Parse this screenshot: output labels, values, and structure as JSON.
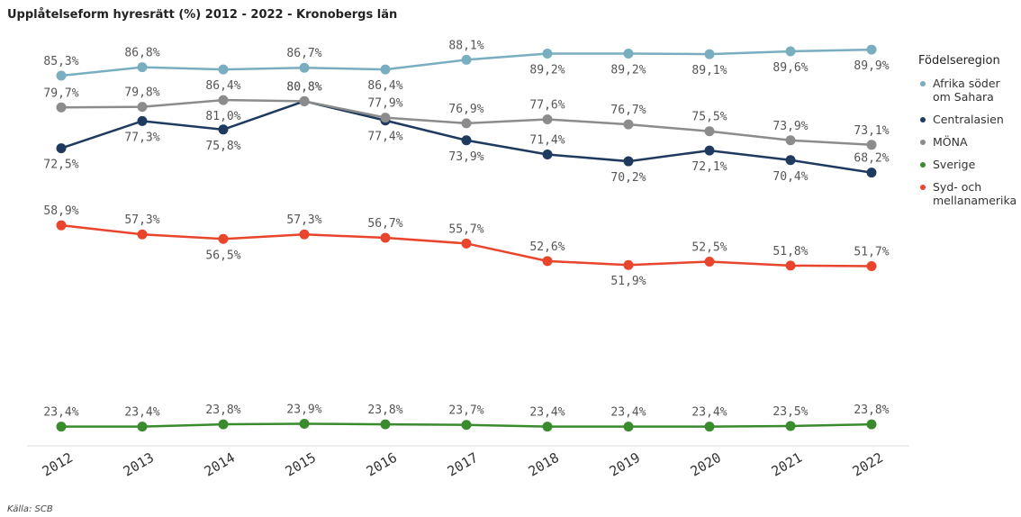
{
  "chart_data": {
    "type": "line",
    "title": "Upplåtelseform hyresrätt (%) 2012 - 2022 - Kronobergs län",
    "source": "Källa: SCB",
    "legend_title": "Födelseregion",
    "legend": "right",
    "categories": [
      "2012",
      "2013",
      "2014",
      "2015",
      "2016",
      "2017",
      "2018",
      "2019",
      "2020",
      "2021",
      "2022"
    ],
    "ylim": [
      20,
      91.5
    ],
    "series": [
      {
        "name": "Afrika söder om Sahara",
        "color": "#78aec0",
        "values": [
          85.3,
          86.8,
          86.4,
          86.7,
          86.4,
          88.1,
          89.2,
          89.2,
          89.1,
          89.6,
          89.9
        ],
        "value_labels": [
          "85,3%",
          "86,8%",
          "86,4%",
          "86,7%",
          "86,4%",
          "88,1%",
          "89,2%",
          "89,2%",
          "89,1%",
          "89,6%",
          "89,9%"
        ]
      },
      {
        "name": "Centralasien",
        "color": "#1f3a5f",
        "values": [
          72.5,
          77.3,
          75.8,
          80.8,
          77.4,
          73.9,
          71.4,
          70.2,
          72.1,
          70.4,
          68.2
        ],
        "value_labels": [
          "72,5%",
          "77,3%",
          "75,8%",
          "80,8%",
          "77,4%",
          "73,9%",
          "71,4%",
          "70,2%",
          "72,1%",
          "70,4%",
          "68,2%"
        ]
      },
      {
        "name": "MÖNA",
        "color": "#8c8c8c",
        "values": [
          79.7,
          79.8,
          81.0,
          80.8,
          77.9,
          76.9,
          77.6,
          76.7,
          75.5,
          73.9,
          73.1
        ],
        "value_labels": [
          "79,7%",
          "79,8%",
          "81,0%",
          "80,8%",
          "77,9%",
          "76,9%",
          "77,6%",
          "76,7%",
          "75,5%",
          "73,9%",
          "73,1%"
        ]
      },
      {
        "name": "Sverige",
        "color": "#3a8a2e",
        "values": [
          23.4,
          23.4,
          23.8,
          23.9,
          23.8,
          23.7,
          23.4,
          23.4,
          23.4,
          23.5,
          23.8
        ],
        "value_labels": [
          "23,4%",
          "23,4%",
          "23,8%",
          "23,9%",
          "23,8%",
          "23,7%",
          "23,4%",
          "23,4%",
          "23,4%",
          "23,5%",
          "23,8%"
        ]
      },
      {
        "name": "Syd- och mellanamerika",
        "color": "#e8452c",
        "values": [
          58.9,
          57.3,
          56.5,
          57.3,
          56.7,
          55.7,
          52.6,
          51.9,
          52.5,
          51.8,
          51.7
        ],
        "value_labels": [
          "58,9%",
          "57,3%",
          "56,5%",
          "57,3%",
          "56,7%",
          "55,7%",
          "52,6%",
          "51,9%",
          "52,5%",
          "51,8%",
          "51,7%"
        ]
      }
    ]
  }
}
